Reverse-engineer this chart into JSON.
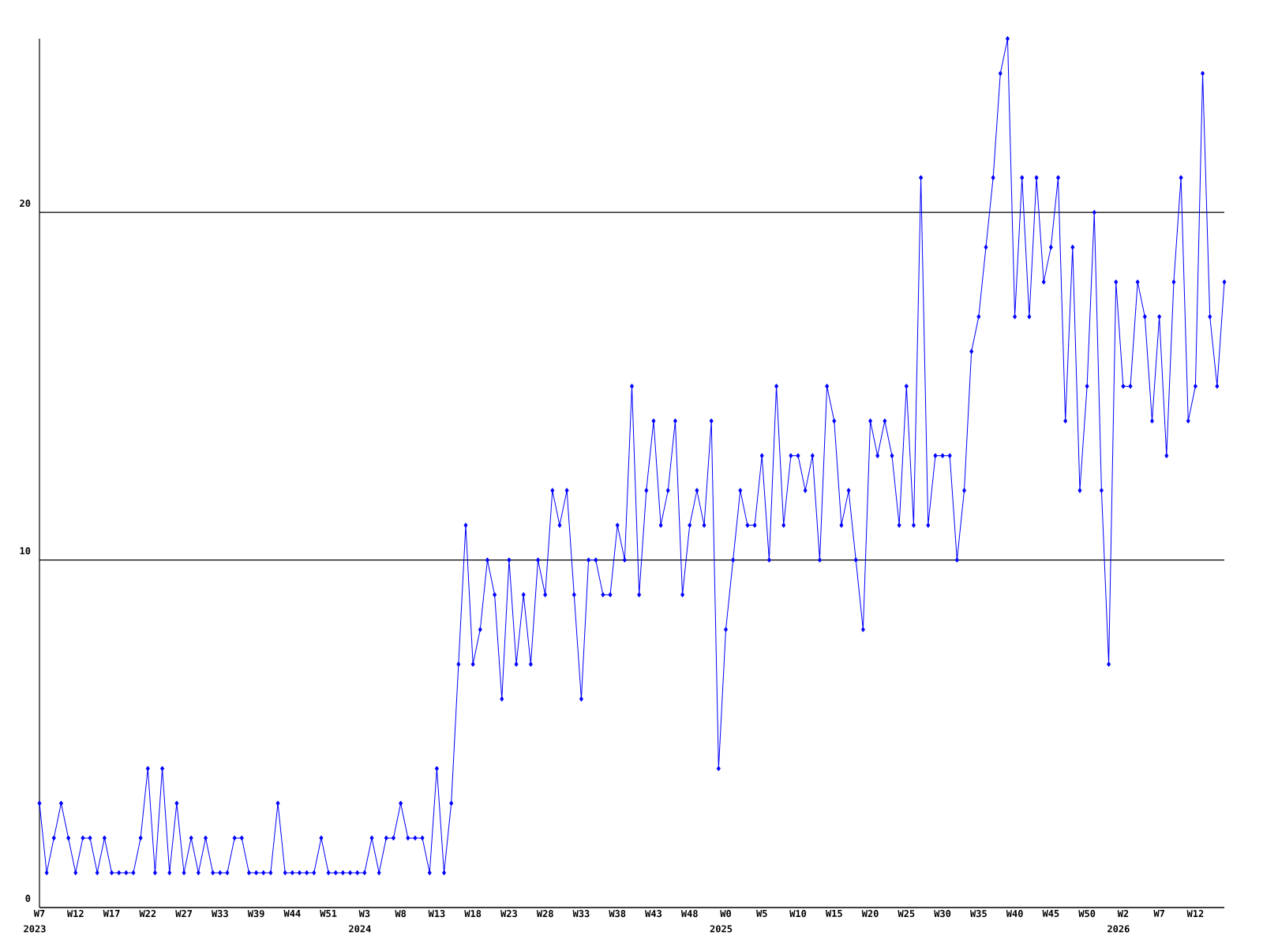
{
  "chart_data": {
    "type": "line",
    "categories": [
      "W7",
      null,
      null,
      null,
      null,
      "W12",
      null,
      null,
      null,
      null,
      "W17",
      null,
      null,
      null,
      null,
      "W22",
      null,
      null,
      null,
      null,
      "W27",
      null,
      null,
      null,
      null,
      "W33",
      null,
      null,
      null,
      null,
      "W39",
      null,
      null,
      null,
      null,
      "W44",
      null,
      null,
      null,
      null,
      "W51",
      null,
      null,
      null,
      null,
      "W3",
      null,
      null,
      null,
      null,
      "W8",
      null,
      null,
      null,
      null,
      "W13",
      null,
      null,
      null,
      null,
      "W18",
      null,
      null,
      null,
      null,
      "W23",
      null,
      null,
      null,
      null,
      "W28",
      null,
      null,
      null,
      null,
      "W33",
      null,
      null,
      null,
      null,
      "W38",
      null,
      null,
      null,
      null,
      "W43",
      null,
      null,
      null,
      null,
      "W48",
      null,
      null,
      null,
      null,
      "W0",
      null,
      null,
      null,
      null,
      "W5",
      null,
      null,
      null,
      null,
      "W10",
      null,
      null,
      null,
      null,
      "W15",
      null,
      null,
      null,
      null,
      "W20",
      null,
      null,
      null,
      null,
      "W25",
      null,
      null,
      null,
      null,
      "W30",
      null,
      null,
      null,
      null,
      "W35",
      null,
      null,
      null,
      null,
      "W40",
      null,
      null,
      null,
      null,
      "W45",
      null,
      null,
      null,
      null,
      "W50",
      null,
      null,
      null,
      null,
      "W2",
      null,
      null,
      null,
      null,
      "W7",
      null,
      null,
      null,
      null,
      "W12",
      null,
      null,
      null,
      null
    ],
    "series": [
      {
        "color": "#0000ff",
        "values": [
          3,
          1,
          2,
          3,
          2,
          1,
          2,
          2,
          1,
          2,
          1,
          1,
          1,
          1,
          2,
          4,
          1,
          4,
          1,
          3,
          1,
          2,
          1,
          2,
          1,
          1,
          1,
          2,
          2,
          1,
          1,
          1,
          1,
          3,
          1,
          1,
          1,
          1,
          1,
          2,
          1,
          1,
          1,
          1,
          1,
          1,
          2,
          1,
          2,
          2,
          3,
          2,
          2,
          2,
          1,
          4,
          1,
          3,
          7,
          11,
          7,
          8,
          10,
          9,
          6,
          10,
          7,
          9,
          7,
          10,
          9,
          12,
          11,
          12,
          9,
          6,
          10,
          10,
          9,
          9,
          11,
          10,
          15,
          9,
          12,
          14,
          11,
          12,
          14,
          9,
          11,
          12,
          11,
          14,
          4,
          8,
          10,
          12,
          11,
          11,
          13,
          10,
          15,
          11,
          13,
          13,
          12,
          13,
          10,
          15,
          14,
          11,
          12,
          10,
          8,
          14,
          13,
          14,
          13,
          11,
          15,
          11,
          21,
          11,
          13,
          13,
          13,
          10,
          12,
          16,
          17,
          19,
          21,
          24,
          25,
          17,
          21,
          17,
          21,
          18,
          19,
          21,
          14,
          19,
          12,
          15,
          20,
          12,
          7,
          18,
          15,
          15,
          18,
          17,
          14,
          17,
          13,
          18,
          21,
          14,
          15,
          24,
          17,
          15,
          18
        ]
      }
    ],
    "ylim": [
      0,
      25
    ],
    "yticks": [
      0,
      10,
      20
    ],
    "grid": "y",
    "marker": "diamond",
    "line_style": "solid",
    "annotations": [
      "2023",
      "2024",
      "2025",
      "2026"
    ]
  }
}
